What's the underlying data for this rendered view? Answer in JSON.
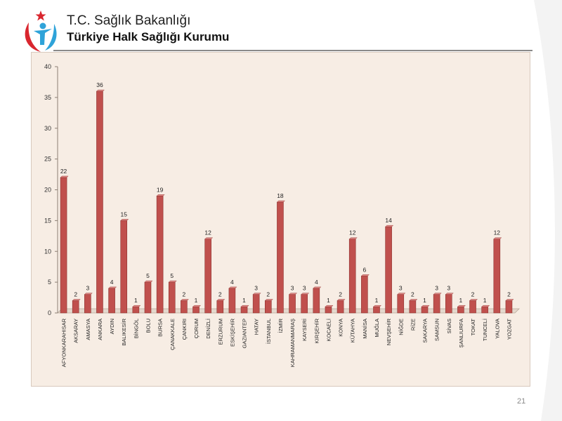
{
  "header": {
    "ministry": "T.C. Sağlık Bakanlığı",
    "institution": "Türkiye Halk Sağlığı Kurumu"
  },
  "page_number": "21",
  "colors": {
    "bar_fill": "#c0504d",
    "bar_top": "#e08a86",
    "logo_red": "#d9262e",
    "logo_blue": "#2fa3d9"
  },
  "chart_data": {
    "type": "bar",
    "categories": [
      "AFYONKARAHISAR",
      "AKSARAY",
      "AMASYA",
      "ANKARA",
      "AYDIN",
      "BALIKESİR",
      "BİNGÖL",
      "BOLU",
      "BURSA",
      "ÇANAKKALE",
      "ÇANKIRI",
      "ÇORUM",
      "DENİZLİ",
      "ERZURUM",
      "ESKİŞEHİR",
      "GAZIANTEP",
      "HATAY",
      "İSTANBUL",
      "İZMİR",
      "KAHRAMANMARAŞ",
      "KAYSERİ",
      "KIRŞEHİR",
      "KOCAELİ",
      "KONYA",
      "KÜTAHYA",
      "MANİSA",
      "MUĞLA",
      "NEVŞEHİR",
      "NİĞDE",
      "RİZE",
      "SAKARYA",
      "SAMSUN",
      "SİVAS",
      "ŞANLIURFA",
      "TOKAT",
      "TUNCELİ",
      "YALOVA",
      "YOZGAT"
    ],
    "values": [
      22,
      2,
      3,
      36,
      4,
      15,
      1,
      5,
      19,
      5,
      2,
      1,
      12,
      2,
      4,
      1,
      3,
      2,
      18,
      3,
      3,
      4,
      1,
      2,
      12,
      6,
      1,
      14,
      3,
      2,
      1,
      3,
      3,
      1,
      2,
      1,
      12,
      2
    ],
    "yticks": [
      "0",
      "5",
      "10",
      "15",
      "20",
      "25",
      "30",
      "35",
      "40"
    ],
    "ylim": [
      0,
      40
    ],
    "title": "",
    "xlabel": "",
    "ylabel": "",
    "grid": false,
    "data_labels": true
  }
}
